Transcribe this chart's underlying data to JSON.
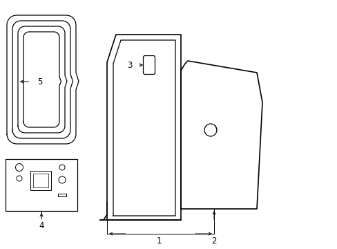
{
  "bg_color": "#ffffff",
  "line_color": "#000000",
  "label_color": "#000000",
  "figsize": [
    4.89,
    3.6
  ],
  "dpi": 100,
  "xlim": [
    0,
    4.89
  ],
  "ylim": [
    0,
    3.6
  ]
}
